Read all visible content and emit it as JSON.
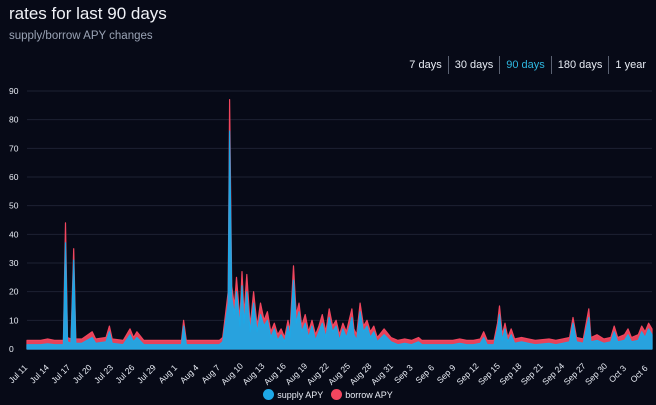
{
  "header": {
    "title": "rates for last 90 days",
    "subtitle": "supply/borrow APY changes"
  },
  "range_buttons": [
    {
      "label": "7 days",
      "active": false
    },
    {
      "label": "30 days",
      "active": false
    },
    {
      "label": "90 days",
      "active": true
    },
    {
      "label": "180 days",
      "active": false
    },
    {
      "label": "1 year",
      "active": false
    }
  ],
  "colors": {
    "supply": "#1ea8e6",
    "borrow": "#f2465e",
    "background": "#070a17",
    "grid": "#1d2233",
    "text": "#e9edf5",
    "accent": "#2fb7e0"
  },
  "chart_data": {
    "type": "area",
    "title": "rates for last 90 days",
    "subtitle": "supply/borrow APY changes",
    "ylim": [
      0,
      90
    ],
    "yticks": [
      0,
      10,
      20,
      30,
      40,
      50,
      60,
      70,
      80,
      90
    ],
    "xlim": [
      0,
      91
    ],
    "x_tick_labels": [
      "Jul 11",
      "Jul 14",
      "Jul 17",
      "Jul 20",
      "Jul 23",
      "Jul 26",
      "Jul 29",
      "Aug 1",
      "Aug 4",
      "Aug 7",
      "Aug 10",
      "Aug 13",
      "Aug 16",
      "Aug 19",
      "Aug 22",
      "Aug 25",
      "Aug 28",
      "Aug 31",
      "Sep 3",
      "Sep 6",
      "Sep 9",
      "Sep 12",
      "Sep 15",
      "Sep 18",
      "Sep 21",
      "Sep 24",
      "Sep 27",
      "Sep 30",
      "Oct 3",
      "Oct 6"
    ],
    "legend": [
      "supply APY",
      "borrow APY"
    ],
    "legend_position": "bottom",
    "grid": true,
    "series": [
      {
        "name": "borrow APY",
        "points": [
          [
            0,
            3
          ],
          [
            2,
            3
          ],
          [
            3,
            3.5
          ],
          [
            4,
            3
          ],
          [
            5.3,
            3
          ],
          [
            5.6,
            44
          ],
          [
            5.9,
            4
          ],
          [
            6.4,
            3.5
          ],
          [
            6.8,
            35
          ],
          [
            7.1,
            3.5
          ],
          [
            8,
            3.5
          ],
          [
            9.5,
            6
          ],
          [
            10,
            3.5
          ],
          [
            11.5,
            4
          ],
          [
            12,
            8
          ],
          [
            12.4,
            3.5
          ],
          [
            14,
            3
          ],
          [
            15,
            7
          ],
          [
            15.5,
            4
          ],
          [
            16,
            6
          ],
          [
            17,
            3
          ],
          [
            22,
            3
          ],
          [
            22.5,
            3
          ],
          [
            22.8,
            10
          ],
          [
            23.2,
            3
          ],
          [
            27,
            3
          ],
          [
            28,
            3
          ],
          [
            28.5,
            4
          ],
          [
            29.3,
            20
          ],
          [
            29.5,
            87
          ],
          [
            29.8,
            22
          ],
          [
            30.2,
            15
          ],
          [
            30.5,
            25
          ],
          [
            31,
            10
          ],
          [
            31.3,
            27
          ],
          [
            31.6,
            12
          ],
          [
            32,
            26
          ],
          [
            32.5,
            8
          ],
          [
            33,
            20
          ],
          [
            33.5,
            8
          ],
          [
            34,
            16
          ],
          [
            34.5,
            10
          ],
          [
            35,
            13
          ],
          [
            35.5,
            6
          ],
          [
            36,
            9
          ],
          [
            36.5,
            5
          ],
          [
            37,
            7
          ],
          [
            37.5,
            4
          ],
          [
            38,
            10
          ],
          [
            38.3,
            6
          ],
          [
            38.8,
            29
          ],
          [
            39.2,
            12
          ],
          [
            39.6,
            16
          ],
          [
            40,
            8
          ],
          [
            40.5,
            12
          ],
          [
            41,
            6
          ],
          [
            41.5,
            10
          ],
          [
            42,
            5
          ],
          [
            42.5,
            8
          ],
          [
            43,
            12
          ],
          [
            43.5,
            6
          ],
          [
            44,
            14
          ],
          [
            44.5,
            8
          ],
          [
            45,
            10
          ],
          [
            45.5,
            5
          ],
          [
            46,
            9
          ],
          [
            46.5,
            6
          ],
          [
            47,
            11
          ],
          [
            47.3,
            14
          ],
          [
            47.6,
            7
          ],
          [
            48,
            5
          ],
          [
            48.5,
            16
          ],
          [
            49,
            8
          ],
          [
            49.5,
            10
          ],
          [
            50,
            6
          ],
          [
            50.5,
            8
          ],
          [
            51,
            4
          ],
          [
            52,
            7
          ],
          [
            53,
            4
          ],
          [
            54,
            3
          ],
          [
            55,
            3.5
          ],
          [
            56,
            3
          ],
          [
            57,
            4
          ],
          [
            57.5,
            3
          ],
          [
            58,
            3
          ],
          [
            60,
            3
          ],
          [
            61,
            3
          ],
          [
            62,
            3
          ],
          [
            63,
            3.5
          ],
          [
            64,
            3
          ],
          [
            65,
            3
          ],
          [
            66,
            3.5
          ],
          [
            66.5,
            6
          ],
          [
            67,
            3
          ],
          [
            68,
            3
          ],
          [
            68.5,
            9
          ],
          [
            68.8,
            15
          ],
          [
            69.2,
            5
          ],
          [
            69.6,
            9
          ],
          [
            70,
            4
          ],
          [
            70.5,
            7
          ],
          [
            71,
            3.5
          ],
          [
            72,
            4
          ],
          [
            73,
            3.5
          ],
          [
            74,
            3
          ],
          [
            76,
            3.5
          ],
          [
            77,
            3
          ],
          [
            78,
            3.5
          ],
          [
            79,
            4
          ],
          [
            79.5,
            11
          ],
          [
            80,
            4
          ],
          [
            81,
            3.5
          ],
          [
            81.8,
            14
          ],
          [
            82.1,
            4
          ],
          [
            83,
            5
          ],
          [
            84,
            3.5
          ],
          [
            85,
            4
          ],
          [
            85.5,
            8
          ],
          [
            86,
            4
          ],
          [
            87,
            5
          ],
          [
            87.5,
            7
          ],
          [
            88,
            4
          ],
          [
            89,
            5
          ],
          [
            89.5,
            8
          ],
          [
            90,
            6
          ],
          [
            90.5,
            9
          ],
          [
            91,
            7
          ]
        ]
      },
      {
        "name": "supply APY",
        "points": [
          [
            0,
            1.5
          ],
          [
            2,
            1.5
          ],
          [
            3,
            1.8
          ],
          [
            4,
            1.5
          ],
          [
            5.3,
            1.5
          ],
          [
            5.6,
            37
          ],
          [
            5.9,
            2.5
          ],
          [
            6.4,
            2
          ],
          [
            6.8,
            31
          ],
          [
            7.1,
            2
          ],
          [
            8,
            2
          ],
          [
            9.5,
            4
          ],
          [
            10,
            2
          ],
          [
            11.5,
            2.5
          ],
          [
            12,
            6
          ],
          [
            12.4,
            2
          ],
          [
            14,
            1.5
          ],
          [
            15,
            5
          ],
          [
            15.5,
            2.5
          ],
          [
            16,
            4
          ],
          [
            17,
            1.5
          ],
          [
            22,
            1.5
          ],
          [
            22.5,
            1.5
          ],
          [
            22.8,
            8
          ],
          [
            23.2,
            1.5
          ],
          [
            27,
            1.5
          ],
          [
            28,
            1.5
          ],
          [
            28.5,
            2.5
          ],
          [
            29.3,
            16
          ],
          [
            29.5,
            76
          ],
          [
            29.8,
            18
          ],
          [
            30.2,
            12
          ],
          [
            30.5,
            20
          ],
          [
            31,
            8
          ],
          [
            31.3,
            22
          ],
          [
            31.6,
            9
          ],
          [
            32,
            20
          ],
          [
            32.5,
            6
          ],
          [
            33,
            16
          ],
          [
            33.5,
            6
          ],
          [
            34,
            12
          ],
          [
            34.5,
            8
          ],
          [
            35,
            10
          ],
          [
            35.5,
            4
          ],
          [
            36,
            7
          ],
          [
            36.5,
            3
          ],
          [
            37,
            5
          ],
          [
            37.5,
            2.5
          ],
          [
            38,
            8
          ],
          [
            38.3,
            4
          ],
          [
            38.8,
            24
          ],
          [
            39.2,
            9
          ],
          [
            39.6,
            13
          ],
          [
            40,
            6
          ],
          [
            40.5,
            9
          ],
          [
            41,
            4
          ],
          [
            41.5,
            8
          ],
          [
            42,
            3
          ],
          [
            42.5,
            6
          ],
          [
            43,
            9
          ],
          [
            43.5,
            4
          ],
          [
            44,
            11
          ],
          [
            44.5,
            6
          ],
          [
            45,
            8
          ],
          [
            45.5,
            3
          ],
          [
            46,
            7
          ],
          [
            46.5,
            4
          ],
          [
            47,
            8
          ],
          [
            47.3,
            11
          ],
          [
            47.6,
            5
          ],
          [
            48,
            3
          ],
          [
            48.5,
            13
          ],
          [
            49,
            6
          ],
          [
            49.5,
            8
          ],
          [
            50,
            4
          ],
          [
            50.5,
            6
          ],
          [
            51,
            2.5
          ],
          [
            52,
            5
          ],
          [
            53,
            2.5
          ],
          [
            54,
            1.5
          ],
          [
            55,
            2
          ],
          [
            56,
            1.5
          ],
          [
            57,
            2.5
          ],
          [
            57.5,
            1.5
          ],
          [
            58,
            1.5
          ],
          [
            60,
            1.5
          ],
          [
            61,
            1.5
          ],
          [
            62,
            1.5
          ],
          [
            63,
            2
          ],
          [
            64,
            1.5
          ],
          [
            65,
            1.5
          ],
          [
            66,
            2
          ],
          [
            66.5,
            4
          ],
          [
            67,
            1.5
          ],
          [
            68,
            1.5
          ],
          [
            68.5,
            7
          ],
          [
            68.8,
            12
          ],
          [
            69.2,
            3
          ],
          [
            69.6,
            7
          ],
          [
            70,
            2.5
          ],
          [
            70.5,
            5
          ],
          [
            71,
            2
          ],
          [
            72,
            2.5
          ],
          [
            73,
            2
          ],
          [
            74,
            1.5
          ],
          [
            76,
            2
          ],
          [
            77,
            1.5
          ],
          [
            78,
            2
          ],
          [
            79,
            2.5
          ],
          [
            79.5,
            9
          ],
          [
            80,
            2.5
          ],
          [
            81,
            2
          ],
          [
            81.8,
            11
          ],
          [
            82.1,
            2.5
          ],
          [
            83,
            3
          ],
          [
            84,
            2
          ],
          [
            85,
            2.5
          ],
          [
            85.5,
            6
          ],
          [
            86,
            2.5
          ],
          [
            87,
            3
          ],
          [
            87.5,
            5
          ],
          [
            88,
            2.5
          ],
          [
            89,
            3
          ],
          [
            89.5,
            6
          ],
          [
            90,
            4
          ],
          [
            90.5,
            7
          ],
          [
            91,
            5
          ]
        ]
      }
    ]
  }
}
